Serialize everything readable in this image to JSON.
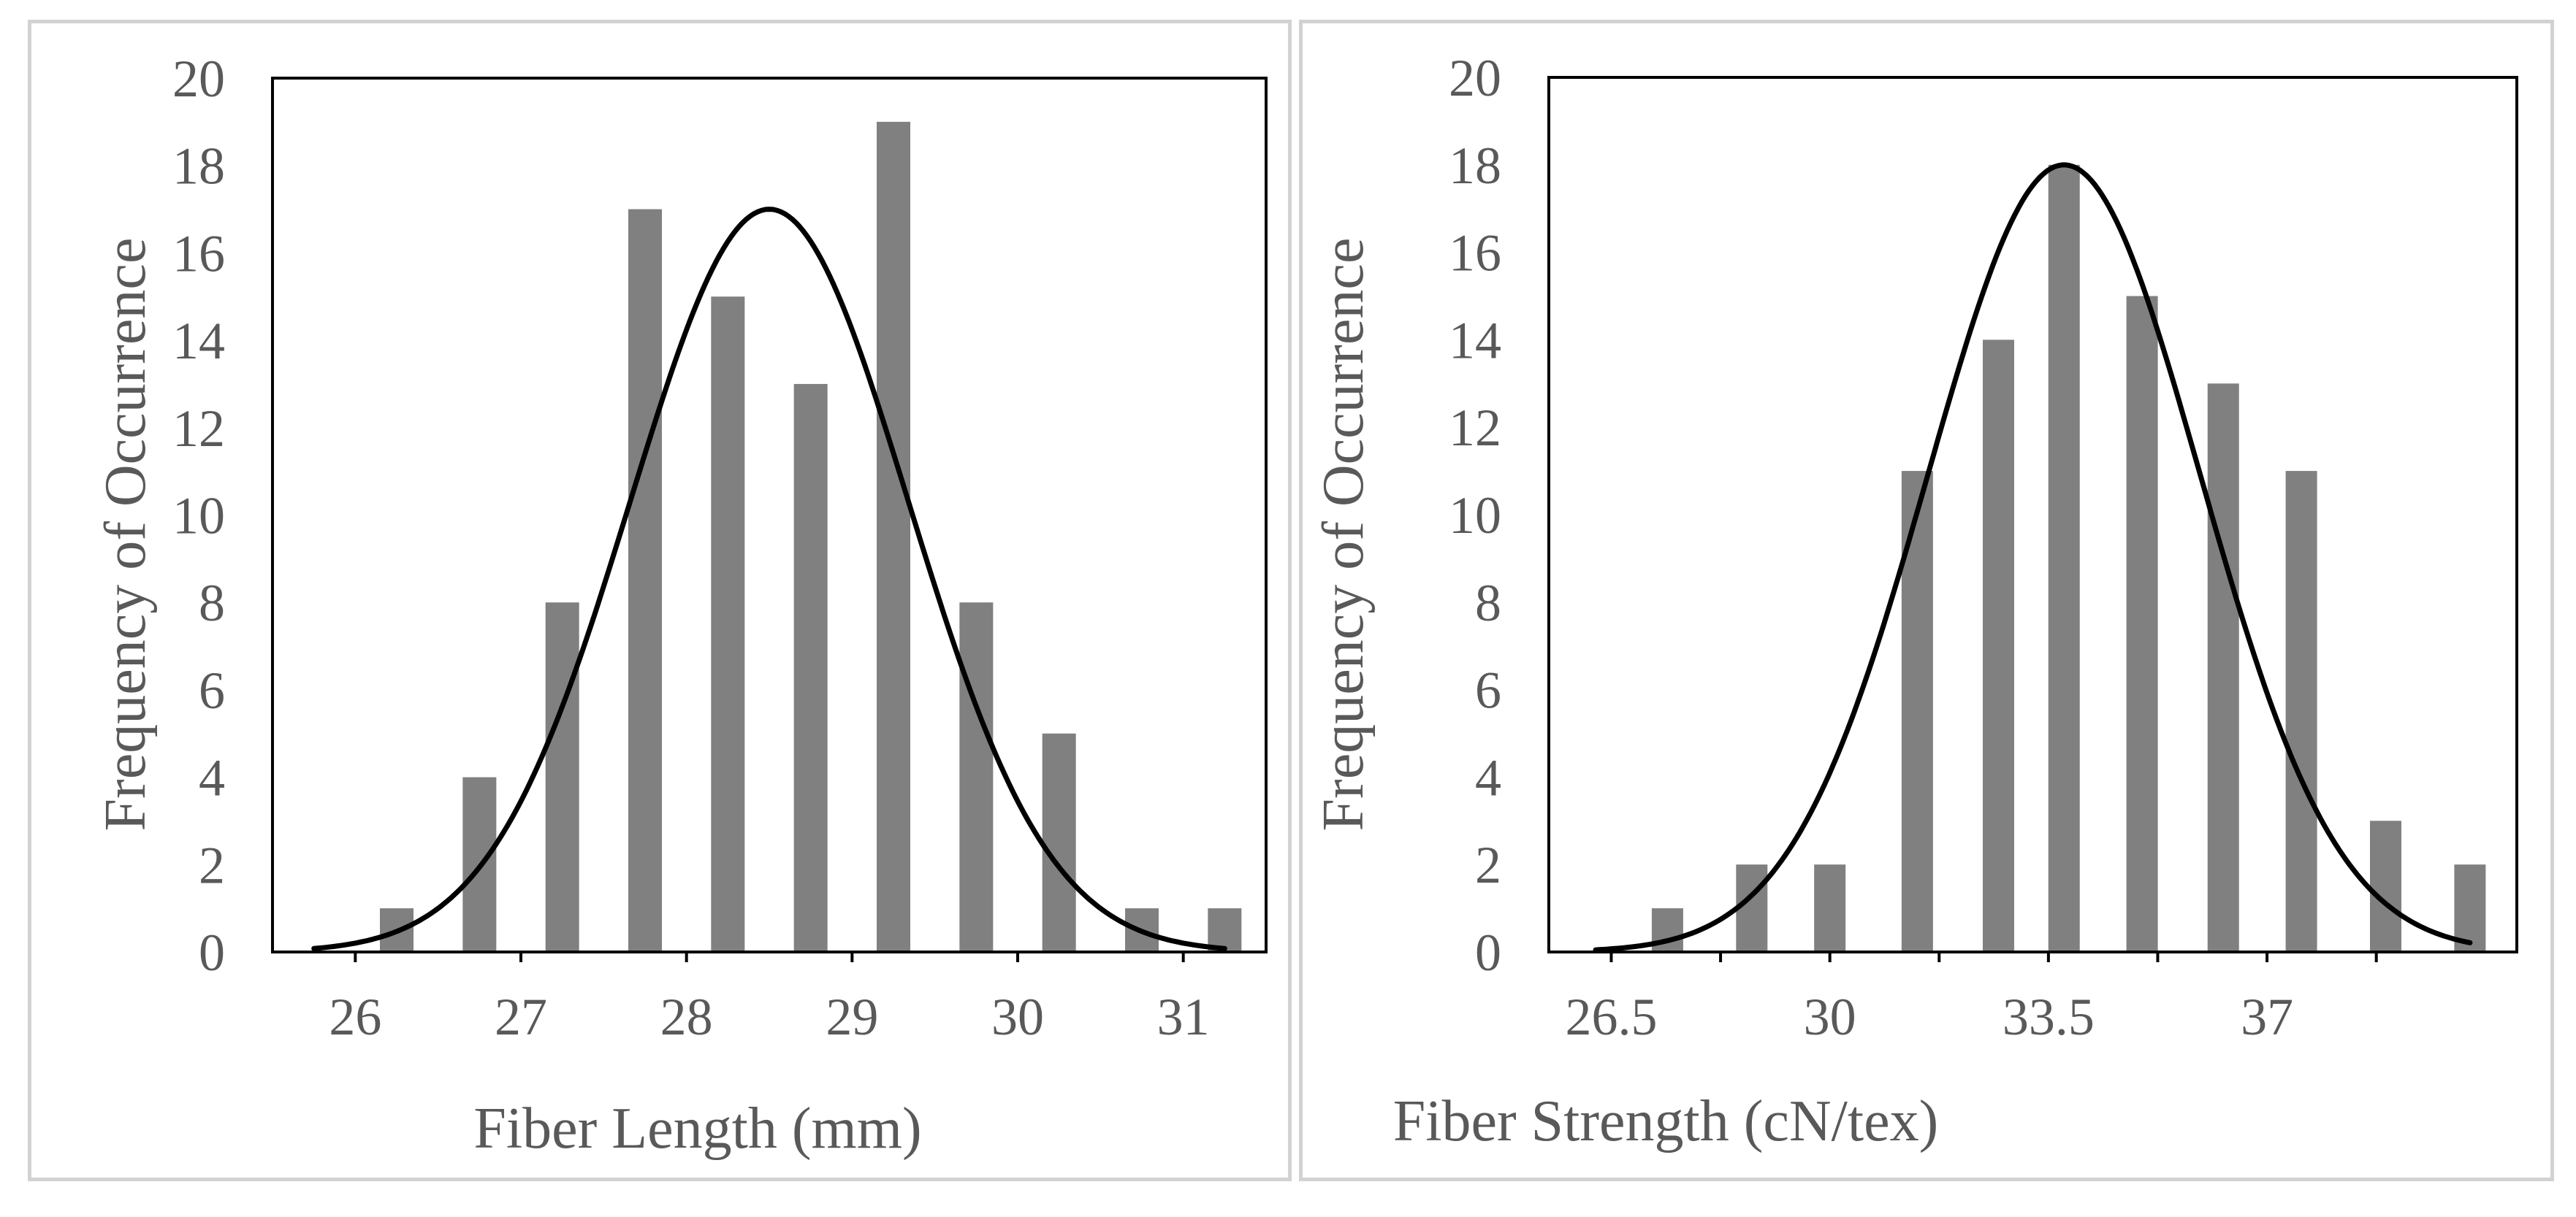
{
  "chart_data": [
    {
      "type": "bar",
      "overlay": "normal-distribution-curve",
      "xlabel": "Fiber Length (mm)",
      "ylabel": "Frequency of Occurrence",
      "xlim": [
        25.5,
        31.5
      ],
      "ylim": [
        0,
        20
      ],
      "x_ticks": [
        26,
        27,
        28,
        29,
        30,
        31
      ],
      "y_ticks": [
        0,
        2,
        4,
        6,
        8,
        10,
        12,
        14,
        16,
        18,
        20
      ],
      "bar_x": [
        26.25,
        26.75,
        27.25,
        27.75,
        28.25,
        28.75,
        29.25,
        29.75,
        30.25,
        30.75,
        31.25
      ],
      "values": [
        1,
        4,
        8,
        17,
        15,
        13,
        19,
        8,
        5,
        1,
        1
      ],
      "curve": {
        "mean": 28.5,
        "std": 0.84,
        "peak": 17,
        "x_range": [
          25.75,
          31.25
        ]
      },
      "grid": false,
      "legend": "none",
      "colors": {
        "bars": "#808080",
        "curve": "#000000",
        "axis": "#000000",
        "text": "#595959"
      }
    },
    {
      "type": "bar",
      "overlay": "normal-distribution-curve",
      "xlabel": "Fiber Strength (cN/tex)",
      "ylabel": "Frequency of Occurrence",
      "xlim": [
        25.5,
        41.0
      ],
      "ylim": [
        0,
        20
      ],
      "x_ticks": [
        26.5,
        30,
        33.5,
        37
      ],
      "x_tick_labels": [
        "26.5",
        "30",
        "33.5",
        "37"
      ],
      "minor_x_ticks": [
        28.25,
        31.75,
        35.25,
        38.75
      ],
      "y_ticks": [
        0,
        2,
        4,
        6,
        8,
        10,
        12,
        14,
        16,
        18,
        20
      ],
      "bar_x": [
        27.4,
        28.75,
        30.0,
        31.4,
        32.7,
        33.75,
        35.0,
        36.3,
        37.55,
        38.9,
        40.25
      ],
      "values": [
        1,
        2,
        2,
        11,
        14,
        18,
        15,
        13,
        11,
        3,
        2
      ],
      "curve": {
        "mean": 33.75,
        "std": 2.18,
        "peak": 18,
        "x_range": [
          26.25,
          40.25
        ]
      },
      "grid": false,
      "legend": "none",
      "colors": {
        "bars": "#808080",
        "curve": "#000000",
        "axis": "#000000",
        "text": "#595959"
      }
    }
  ]
}
